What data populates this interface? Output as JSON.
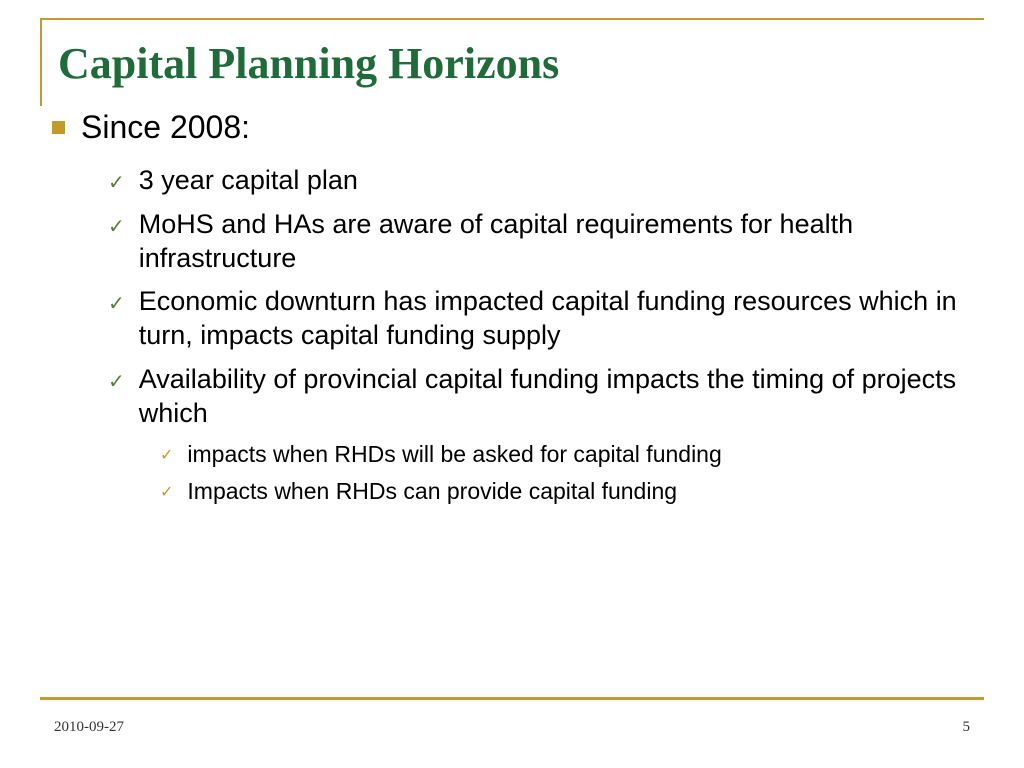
{
  "title": "Capital Planning Horizons",
  "main_bullet": "Since 2008:",
  "sub_bullets": [
    "3 year capital plan",
    "MoHS and HAs are aware of capital requirements for health infrastructure",
    "Economic downturn has impacted capital funding resources which in turn, impacts capital funding supply",
    "Availability of provincial capital funding impacts the timing of projects which"
  ],
  "sub_sub_bullets": [
    "impacts when RHDs will be asked for capital funding",
    "Impacts when RHDs can provide capital funding"
  ],
  "footer": {
    "date": "2010-09-27",
    "page": "5"
  },
  "colors": {
    "accent_gold": "#c29b2c",
    "title_green": "#1f6b3a",
    "check_green": "#567d3a",
    "text": "#000000",
    "background": "#ffffff"
  },
  "typography": {
    "title_family": "Garamond serif",
    "title_size_pt": 33,
    "body_family": "Arial",
    "l1_size_pt": 24,
    "l2_size_pt": 20,
    "l3_size_pt": 17,
    "footer_size_pt": 11
  }
}
